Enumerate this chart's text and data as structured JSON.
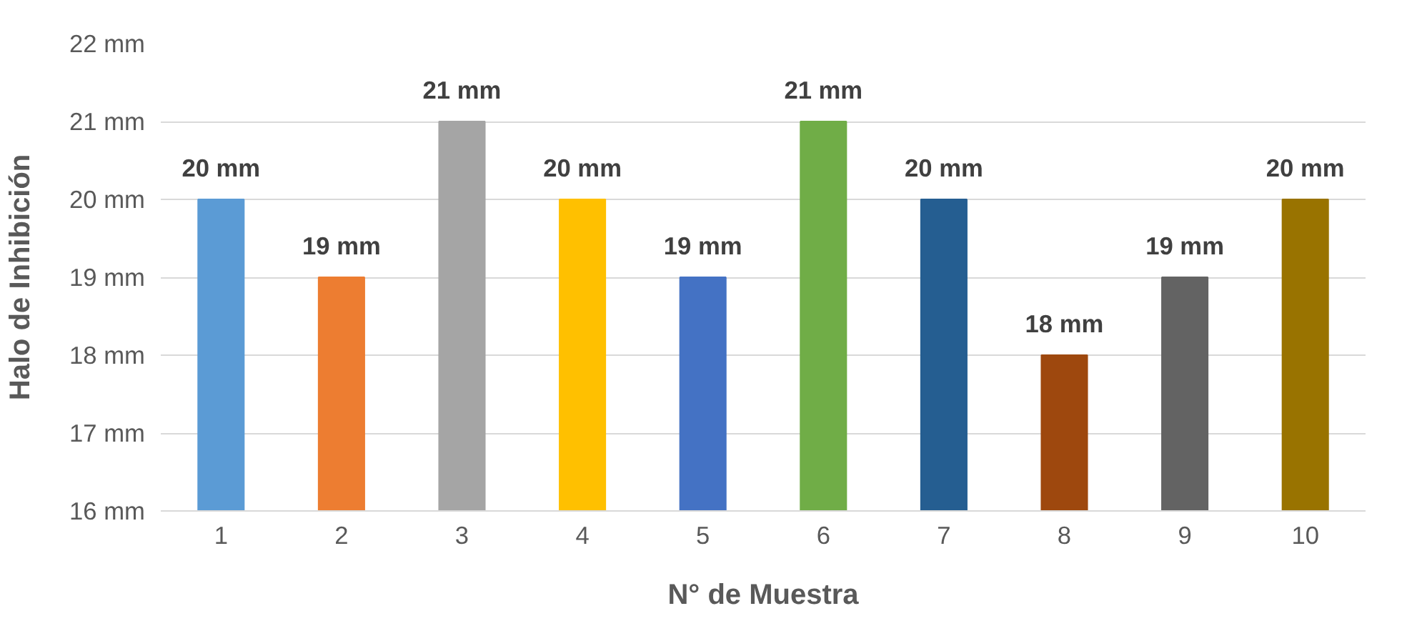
{
  "chart_data": {
    "type": "bar",
    "xlabel": "N° de Muestra",
    "ylabel": "Halo de Inhibición",
    "categories": [
      "1",
      "2",
      "3",
      "4",
      "5",
      "6",
      "7",
      "8",
      "9",
      "10"
    ],
    "values": [
      20,
      19,
      21,
      20,
      19,
      21,
      20,
      18,
      19,
      20
    ],
    "colors": [
      "#5b9bd5",
      "#ed7d31",
      "#a5a5a5",
      "#ffc000",
      "#4472c4",
      "#70ad47",
      "#255e91",
      "#9e480e",
      "#636363",
      "#997300"
    ],
    "value_labels": [
      "20 mm",
      "19 mm",
      "21 mm",
      "20 mm",
      "19 mm",
      "21 mm",
      "20 mm",
      "18 mm",
      "19 mm",
      "20 mm"
    ],
    "ylim": [
      16,
      22
    ],
    "yticks": [
      {
        "value": 16,
        "label": "16 mm"
      },
      {
        "value": 17,
        "label": "17 mm"
      },
      {
        "value": 18,
        "label": "18 mm"
      },
      {
        "value": 19,
        "label": "19 mm"
      },
      {
        "value": 20,
        "label": "20 mm"
      },
      {
        "value": 21,
        "label": "21 mm"
      },
      {
        "value": 22,
        "label": "22 mm"
      }
    ],
    "grid": "y"
  }
}
